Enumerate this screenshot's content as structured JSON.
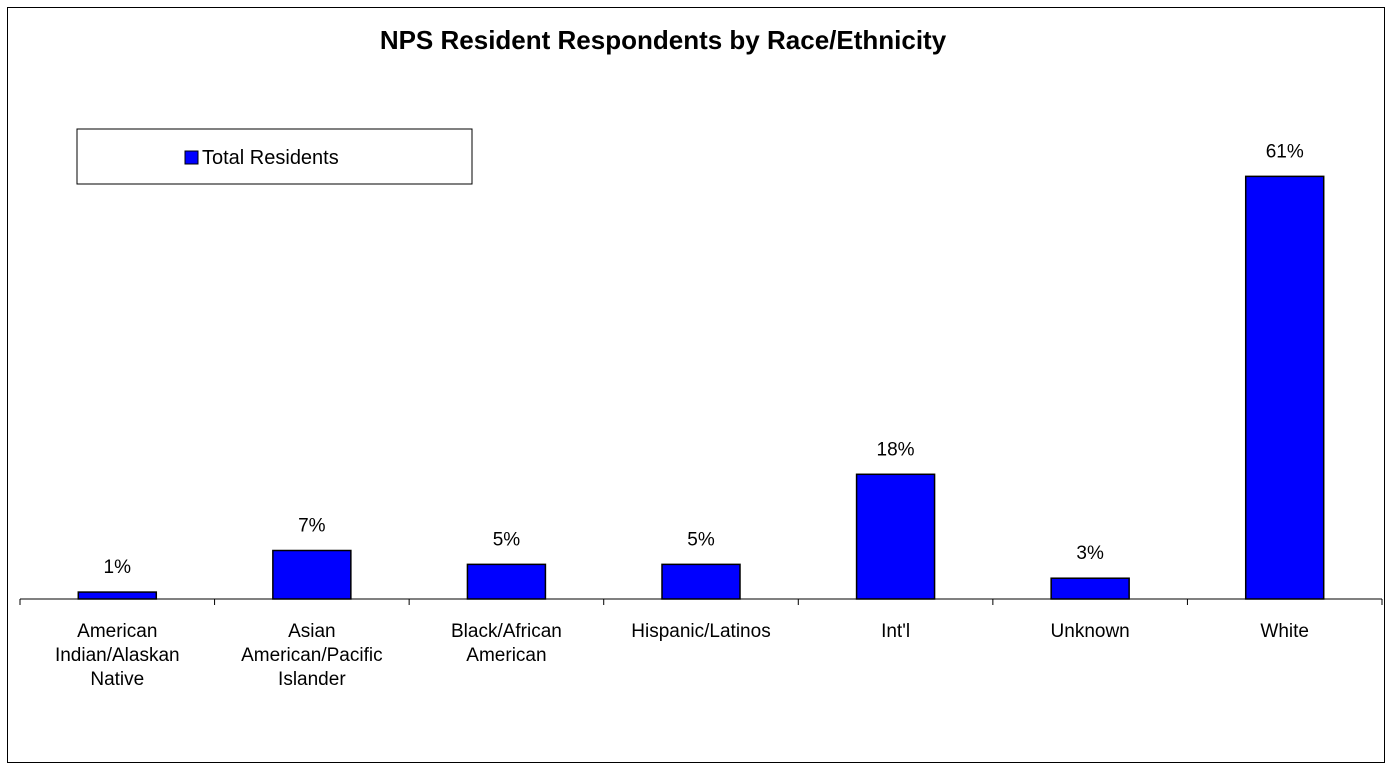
{
  "chart_data": {
    "type": "bar",
    "title": "NPS Resident Respondents by Race/Ethnicity",
    "categories": [
      [
        "American",
        "Indian/Alaskan",
        "Native"
      ],
      [
        "Asian",
        "American/Pacific",
        "Islander"
      ],
      [
        "Black/African",
        "American"
      ],
      [
        "Hispanic/Latinos"
      ],
      [
        "Int'l"
      ],
      [
        "Unknown"
      ],
      [
        "White"
      ]
    ],
    "series": [
      {
        "name": "Total Residents",
        "values": [
          1,
          7,
          5,
          5,
          18,
          3,
          61
        ],
        "labels": [
          "1%",
          "7%",
          "5%",
          "5%",
          "18%",
          "3%",
          "61%"
        ],
        "color": "#0000ff"
      }
    ],
    "xlabel": "",
    "ylabel": "",
    "ylim": [
      0,
      70
    ],
    "grid": false,
    "legend": "top-left"
  }
}
